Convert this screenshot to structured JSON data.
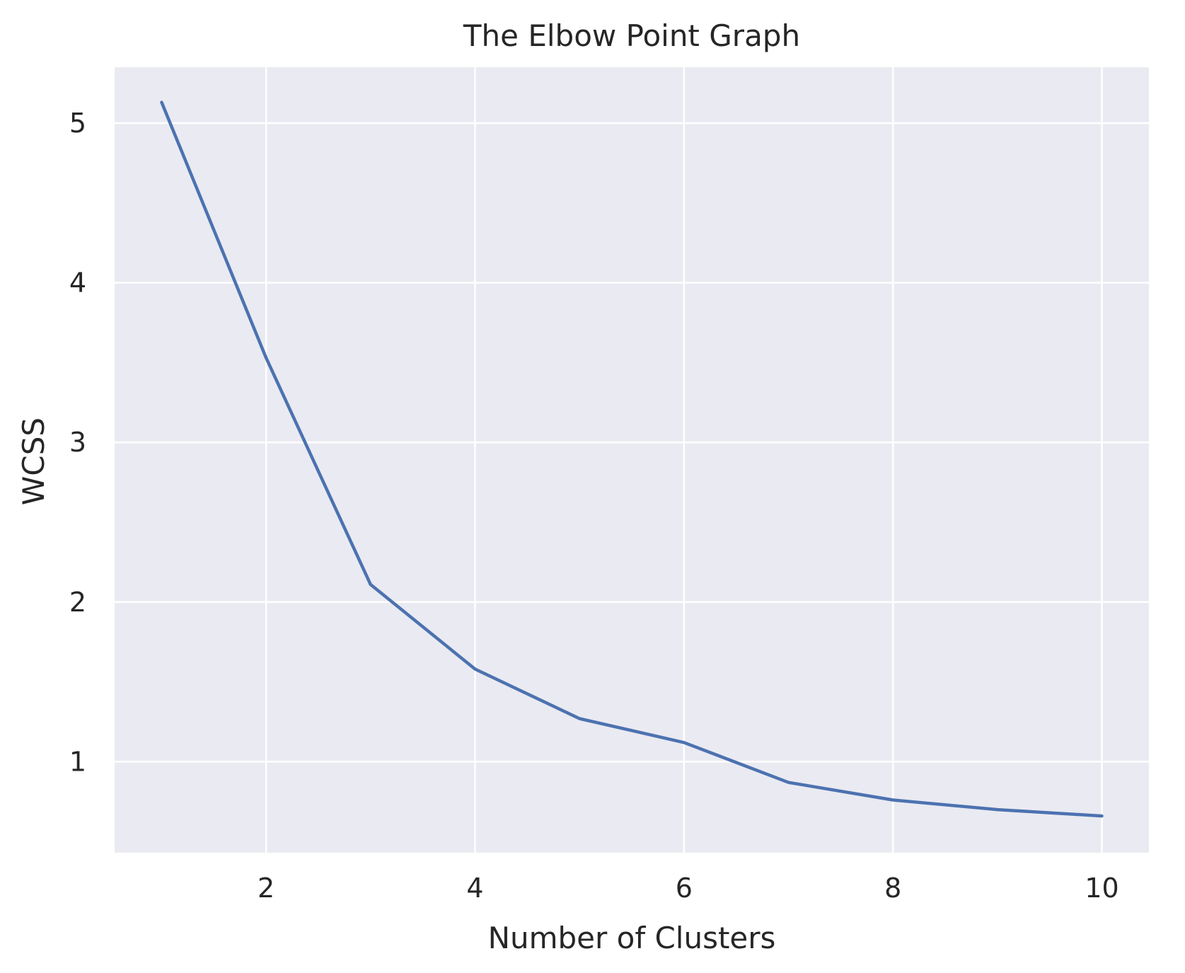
{
  "chart_data": {
    "type": "line",
    "title": "The Elbow Point Graph",
    "xlabel": "Number of Clusters",
    "ylabel": "WCSS",
    "x": [
      1,
      2,
      3,
      4,
      5,
      6,
      7,
      8,
      9,
      10
    ],
    "series": [
      {
        "values": [
          5.13,
          3.53,
          2.11,
          1.58,
          1.27,
          1.12,
          0.87,
          0.76,
          0.7,
          0.66
        ]
      }
    ],
    "xlim": [
      0.55,
      10.45
    ],
    "ylim": [
      0.43,
      5.35
    ],
    "xticks": [
      2,
      4,
      6,
      8,
      10
    ],
    "yticks": [
      1,
      2,
      3,
      4,
      5
    ],
    "grid": true,
    "colors": {
      "background": "#eaeaf2",
      "grid": "#ffffff",
      "line": "#4c72b0",
      "text": "#262626"
    }
  }
}
